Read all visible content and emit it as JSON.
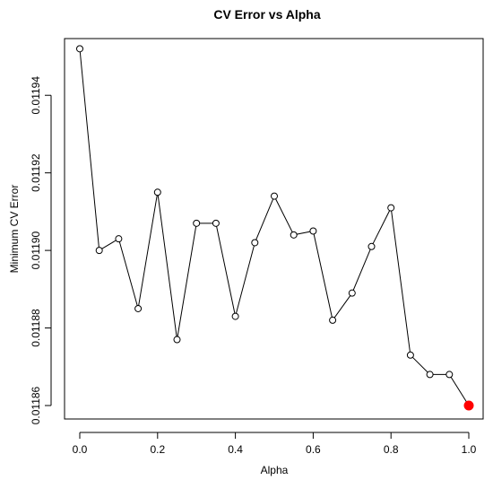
{
  "chart_data": {
    "type": "scatter",
    "title": "CV Error vs Alpha",
    "xlabel": "Alpha",
    "ylabel": "Minimum CV Error",
    "xlim": [
      0.0,
      1.0
    ],
    "ylim": [
      0.01186,
      0.01195
    ],
    "x_ticks": [
      0.0,
      0.2,
      0.4,
      0.6,
      0.8,
      1.0
    ],
    "x_tick_labels": [
      "0.0",
      "0.2",
      "0.4",
      "0.6",
      "0.8",
      "1.0"
    ],
    "y_ticks": [
      0.01186,
      0.01188,
      0.0119,
      0.01192,
      0.01194
    ],
    "y_tick_labels": [
      "0.01186",
      "0.01188",
      "0.01190",
      "0.01192",
      "0.01194"
    ],
    "grid": false,
    "connect_points": true,
    "point_style": "open-circle",
    "series": [
      {
        "x": [
          0.0,
          0.05,
          0.1,
          0.15,
          0.2,
          0.25,
          0.3,
          0.35,
          0.4,
          0.45,
          0.5,
          0.55,
          0.6,
          0.65,
          0.7,
          0.75,
          0.8,
          0.85,
          0.9,
          0.95,
          1.0
        ],
        "y": [
          0.011952,
          0.0119,
          0.011903,
          0.011885,
          0.011915,
          0.011877,
          0.011907,
          0.011907,
          0.011883,
          0.011902,
          0.011914,
          0.011904,
          0.011905,
          0.011882,
          0.011889,
          0.011901,
          0.011911,
          0.011873,
          0.011868,
          0.011868,
          0.01186
        ]
      }
    ],
    "highlight": {
      "x": 1.0,
      "y": 0.01186,
      "color": "#ff0000"
    }
  }
}
